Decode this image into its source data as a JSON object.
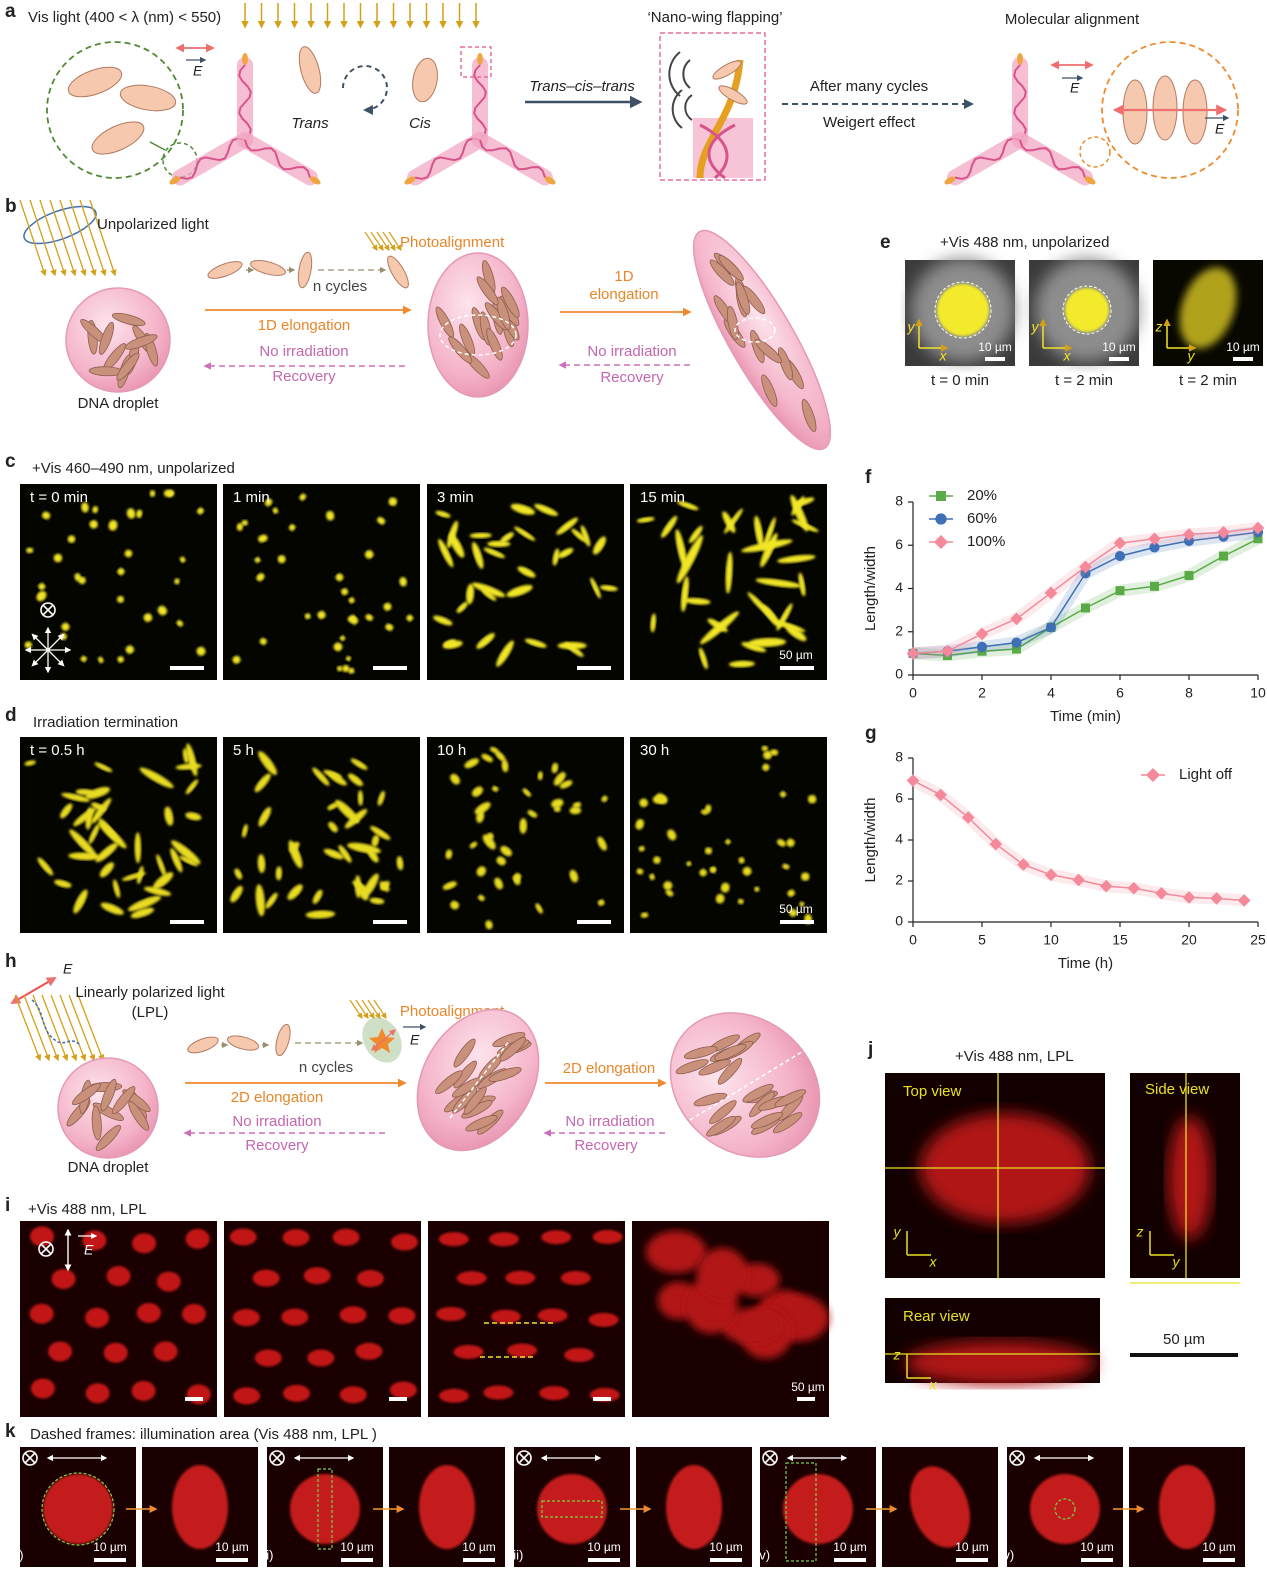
{
  "panel_a": {
    "label": "a",
    "light": "Vis light (400 < λ (nm) < 550)",
    "field": [
      "E",
      "E",
      "E"
    ],
    "trans": "Trans",
    "cis": "Cis",
    "flapping": "‘Nano-wing flapping’",
    "process": "Trans–cis–trans",
    "cycles": "After many cycles",
    "effect": "Weigert effect",
    "alignment": "Molecular alignment"
  },
  "panel_b": {
    "label": "b",
    "light": "Unpolarized light",
    "photoalignment": "Photoalignment",
    "n_cycles": "n cycles",
    "elongation_left": "1D elongation",
    "elongation_right": [
      "1D",
      "elongation"
    ],
    "no_irradiation": [
      "No irradiation",
      "No irradiation"
    ],
    "recovery": [
      "Recovery",
      "Recovery"
    ],
    "droplet": "DNA droplet"
  },
  "panel_c": {
    "label": "c",
    "condition": "+Vis 460–490 nm, unpolarized",
    "times": [
      "t = 0 min",
      "1 min",
      "3 min",
      "15 min"
    ],
    "scale_bar": "50 µm"
  },
  "panel_d": {
    "label": "d",
    "condition": "Irradiation termination",
    "times": [
      "t = 0.5 h",
      "5 h",
      "10 h",
      "30 h"
    ],
    "scale_bar": "50 µm"
  },
  "panel_e": {
    "label": "e",
    "condition": "+Vis 488 nm, unpolarized",
    "times": [
      "t = 0 min",
      "t = 2 min",
      "t = 2 min"
    ],
    "scale_bars": [
      "10 µm",
      "10 µm",
      "10 µm"
    ],
    "axes": [
      [
        "y",
        "x"
      ],
      [
        "y",
        "x"
      ],
      [
        "z",
        "y"
      ]
    ]
  },
  "panel_h": {
    "label": "h",
    "field": [
      "E",
      "E"
    ],
    "light": [
      "Linearly polarized light",
      "(LPL)"
    ],
    "photoalignment": "Photoalignment",
    "n_cycles": "n cycles",
    "elongation": [
      "2D elongation",
      "2D elongation"
    ],
    "no_irradiation": [
      "No irradiation",
      "No irradiation"
    ],
    "recovery": [
      "Recovery",
      "Recovery"
    ],
    "droplet": "DNA droplet"
  },
  "panel_i": {
    "label": "i",
    "condition": "+Vis 488 nm, LPL",
    "field": "E",
    "scale_bar": "50 µm"
  },
  "panel_j": {
    "label": "j",
    "condition": "+Vis 488 nm, LPL",
    "views": [
      "Top view",
      "Side view",
      "Rear view"
    ],
    "axes": [
      [
        "y",
        "x"
      ],
      [
        "z",
        "y"
      ],
      [
        "z",
        "x"
      ]
    ],
    "scale_bar": "50 µm"
  },
  "panel_k": {
    "label": "k",
    "caption": "Dashed frames: illumination area (Vis 488 nm, LPL )",
    "cases": [
      "(i)",
      "(ii)",
      "(iii)",
      "(iv)",
      "(v)"
    ],
    "scale_bars": [
      "10 µm",
      "10 µm",
      "10 µm",
      "10 µm",
      "10 µm",
      "10 µm",
      "10 µm",
      "10 µm",
      "10 µm",
      "10 µm"
    ]
  },
  "chart_data": [
    {
      "type": "line",
      "label": "f",
      "x": [
        0,
        1,
        2,
        3,
        4,
        5,
        6,
        7,
        8,
        9,
        10
      ],
      "xlim": [
        0,
        10
      ],
      "xticks": [
        0,
        2,
        4,
        6,
        8,
        10
      ],
      "ylim": [
        0,
        8
      ],
      "yticks": [
        0,
        2,
        4,
        6,
        8
      ],
      "xlabel": "Time (min)",
      "ylabel": "Length/width",
      "legend": "upper left",
      "series": [
        {
          "name": "20%",
          "color": "#5aaa46",
          "marker": "square",
          "values": [
            1,
            0.9,
            1.1,
            1.2,
            2.2,
            3.1,
            3.9,
            4.1,
            4.6,
            5.5,
            6.3
          ]
        },
        {
          "name": "60%",
          "color": "#3f6fb5",
          "marker": "circle",
          "values": [
            1,
            1.1,
            1.3,
            1.5,
            2.2,
            4.7,
            5.5,
            5.9,
            6.2,
            6.4,
            6.6
          ]
        },
        {
          "name": "100%",
          "color": "#f4899a",
          "marker": "diamond",
          "values": [
            1,
            1.1,
            1.9,
            2.6,
            3.8,
            5.0,
            6.1,
            6.3,
            6.5,
            6.6,
            6.8
          ]
        }
      ]
    },
    {
      "type": "line",
      "label": "g",
      "x": [
        0,
        2,
        4,
        6,
        8,
        10,
        12,
        14,
        16,
        18,
        20,
        22,
        24
      ],
      "xlim": [
        0,
        25
      ],
      "xticks": [
        0,
        5,
        10,
        15,
        20,
        25
      ],
      "ylim": [
        0,
        8
      ],
      "yticks": [
        0,
        2,
        4,
        6,
        8
      ],
      "xlabel": "Time (h)",
      "ylabel": "Length/width",
      "legend": "upper right",
      "series": [
        {
          "name": "Light off",
          "color": "#f4899a",
          "marker": "diamond",
          "values": [
            6.9,
            6.2,
            5.1,
            3.8,
            2.8,
            2.3,
            2.05,
            1.75,
            1.65,
            1.4,
            1.2,
            1.15,
            1.05
          ]
        }
      ]
    }
  ]
}
